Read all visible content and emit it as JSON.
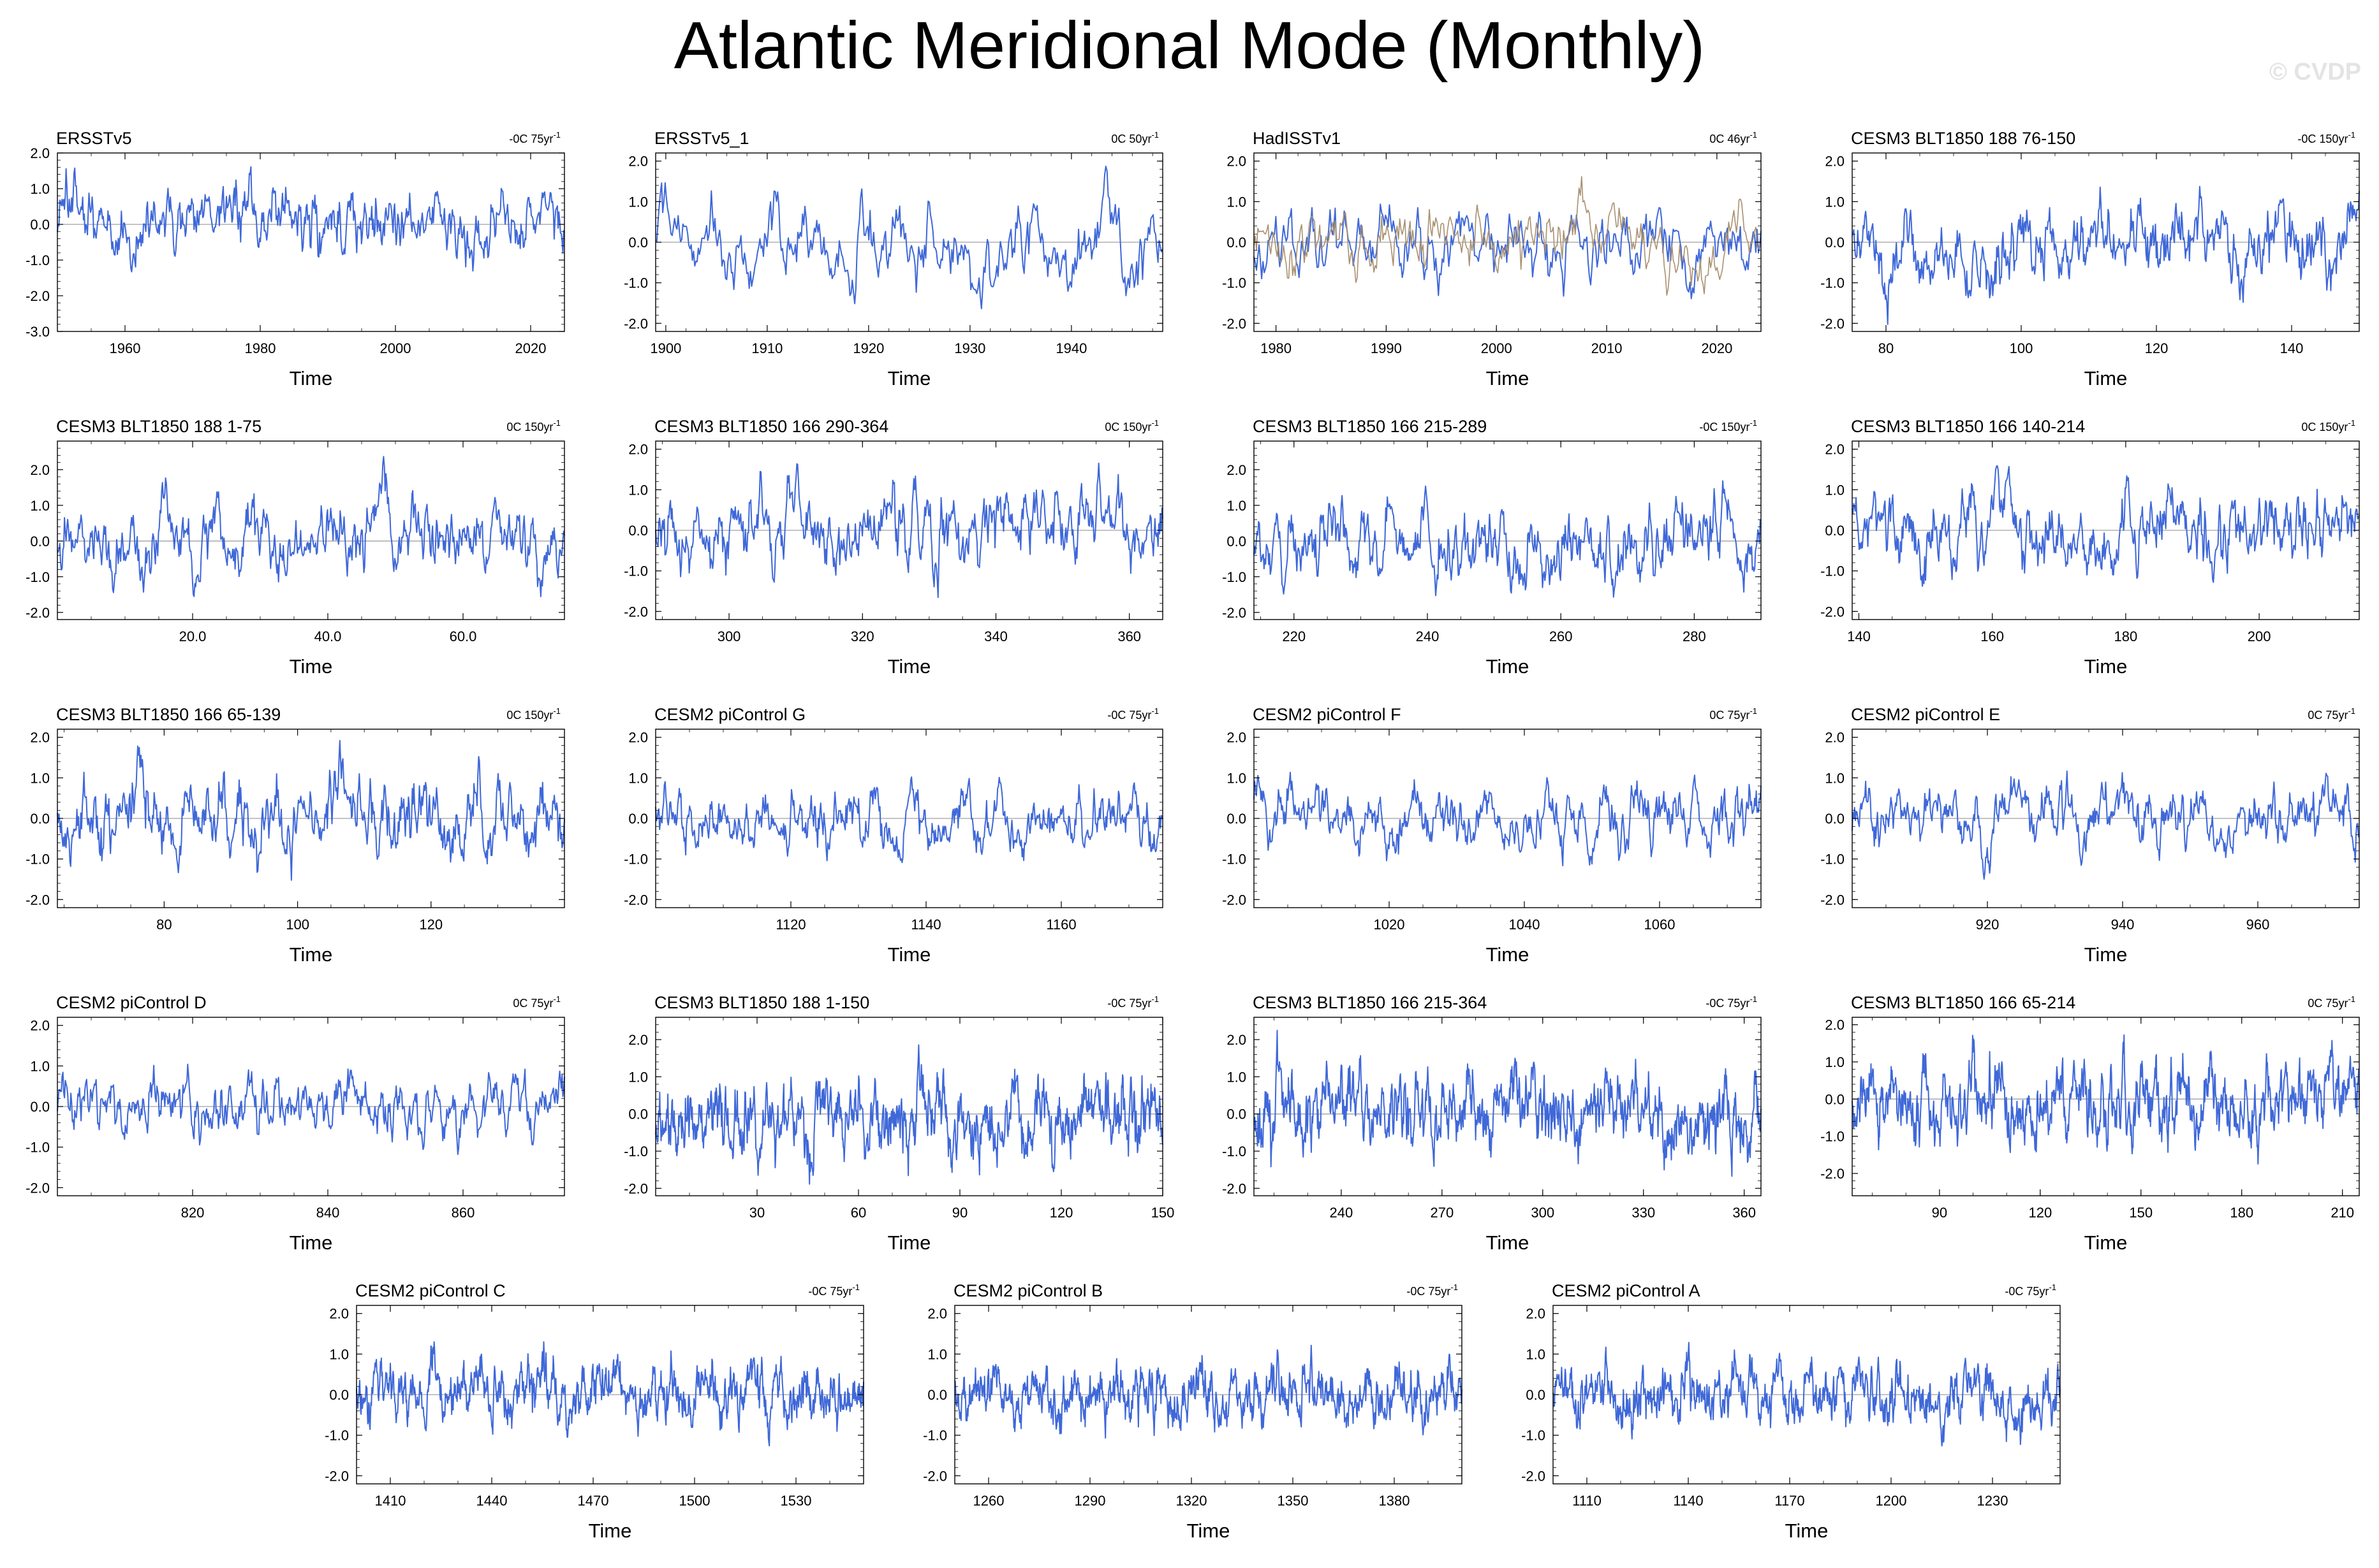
{
  "title": "Atlantic Meridional Mode (Monthly)",
  "watermark": "© CVDP",
  "colors": {
    "series": "#3f68d8",
    "secondary": "#a89070",
    "zero": "#a0a0a0",
    "axis": "#000000"
  },
  "chart_data": [
    {
      "type": "line",
      "title": "ERSSTv5",
      "trend": "-0C 75yr",
      "xlabel": "Time",
      "xlim": [
        1950,
        2025
      ],
      "ylim": [
        -3,
        2
      ],
      "yticks": [
        -3,
        -2,
        -1,
        0,
        1,
        2
      ],
      "xticks": [
        1960,
        1980,
        2000,
        2020
      ],
      "series": [
        {
          "seed": 11,
          "amp": 0.55
        }
      ]
    },
    {
      "type": "line",
      "title": "ERSSTv5_1",
      "trend": "0C 50yr",
      "xlabel": "Time",
      "xlim": [
        1899,
        1949
      ],
      "ylim": [
        -2.2,
        2.2
      ],
      "yticks": [
        -2,
        -1,
        0,
        1,
        2
      ],
      "xticks": [
        1900,
        1910,
        1920,
        1930,
        1940
      ],
      "series": [
        {
          "seed": 12,
          "amp": 0.55
        }
      ]
    },
    {
      "type": "line",
      "title": "HadISSTv1",
      "trend": "0C 46yr",
      "xlabel": "Time",
      "xlim": [
        1978,
        2024
      ],
      "ylim": [
        -2.2,
        2.2
      ],
      "yticks": [
        -2,
        -1,
        0,
        1,
        2
      ],
      "xticks": [
        1980,
        1990,
        2000,
        2010,
        2020
      ],
      "series": [
        {
          "seed": 13,
          "amp": 0.55
        },
        {
          "seed": 14,
          "amp": 0.45,
          "secondary": true
        }
      ]
    },
    {
      "type": "line",
      "title": "CESM3 BLT1850 188 76-150",
      "trend": "-0C 150yr",
      "xlabel": "Time",
      "xlim": [
        75,
        150
      ],
      "ylim": [
        -2.2,
        2.2
      ],
      "yticks": [
        -2,
        -1,
        0,
        1,
        2
      ],
      "xticks": [
        80,
        100,
        120,
        140
      ],
      "series": [
        {
          "seed": 15,
          "amp": 0.55
        }
      ]
    },
    {
      "type": "line",
      "title": "CESM3 BLT1850 188 1-75",
      "trend": "0C 150yr",
      "xlabel": "Time",
      "xlim": [
        0,
        75
      ],
      "ylim": [
        -2.2,
        2.8
      ],
      "yticks": [
        -2,
        -1,
        0,
        1,
        2
      ],
      "xticks": [
        20,
        40,
        60
      ],
      "xtickLabels": [
        "20.0",
        "40.0",
        "60.0"
      ],
      "series": [
        {
          "seed": 16,
          "amp": 0.55
        }
      ]
    },
    {
      "type": "line",
      "title": "CESM3 BLT1850 166 290-364",
      "trend": "0C 150yr",
      "xlabel": "Time",
      "xlim": [
        289,
        365
      ],
      "ylim": [
        -2.2,
        2.2
      ],
      "yticks": [
        -2,
        -1,
        0,
        1,
        2
      ],
      "xticks": [
        300,
        320,
        340,
        360
      ],
      "series": [
        {
          "seed": 17,
          "amp": 0.55
        }
      ]
    },
    {
      "type": "line",
      "title": "CESM3 BLT1850 166 215-289",
      "trend": "-0C 150yr",
      "xlabel": "Time",
      "xlim": [
        214,
        290
      ],
      "ylim": [
        -2.2,
        2.8
      ],
      "yticks": [
        -2,
        -1,
        0,
        1,
        2
      ],
      "xticks": [
        220,
        240,
        260,
        280
      ],
      "series": [
        {
          "seed": 18,
          "amp": 0.55
        }
      ]
    },
    {
      "type": "line",
      "title": "CESM3 BLT1850 166 140-214",
      "trend": "0C 150yr",
      "xlabel": "Time",
      "xlim": [
        139,
        215
      ],
      "ylim": [
        -2.2,
        2.2
      ],
      "yticks": [
        -2,
        -1,
        0,
        1,
        2
      ],
      "xticks": [
        140,
        160,
        180,
        200
      ],
      "series": [
        {
          "seed": 19,
          "amp": 0.55
        }
      ]
    },
    {
      "type": "line",
      "title": "CESM3 BLT1850 166 65-139",
      "trend": "0C 150yr",
      "xlabel": "Time",
      "xlim": [
        64,
        140
      ],
      "ylim": [
        -2.2,
        2.2
      ],
      "yticks": [
        -2,
        -1,
        0,
        1,
        2
      ],
      "xticks": [
        80,
        100,
        120
      ],
      "series": [
        {
          "seed": 20,
          "amp": 0.55
        }
      ]
    },
    {
      "type": "line",
      "title": "CESM2 piControl G",
      "trend": "-0C 75yr",
      "xlabel": "Time",
      "xlim": [
        1100,
        1175
      ],
      "ylim": [
        -2.2,
        2.2
      ],
      "yticks": [
        -2,
        -1,
        0,
        1,
        2
      ],
      "xticks": [
        1120,
        1140,
        1160
      ],
      "series": [
        {
          "seed": 21,
          "amp": 0.4
        }
      ]
    },
    {
      "type": "line",
      "title": "CESM2 piControl F",
      "trend": "0C 75yr",
      "xlabel": "Time",
      "xlim": [
        1000,
        1075
      ],
      "ylim": [
        -2.2,
        2.2
      ],
      "yticks": [
        -2,
        -1,
        0,
        1,
        2
      ],
      "xticks": [
        1020,
        1040,
        1060
      ],
      "series": [
        {
          "seed": 22,
          "amp": 0.4
        }
      ]
    },
    {
      "type": "line",
      "title": "CESM2 piControl E",
      "trend": "0C 75yr",
      "xlabel": "Time",
      "xlim": [
        900,
        975
      ],
      "ylim": [
        -2.2,
        2.2
      ],
      "yticks": [
        -2,
        -1,
        0,
        1,
        2
      ],
      "xticks": [
        920,
        940,
        960
      ],
      "series": [
        {
          "seed": 23,
          "amp": 0.4
        }
      ]
    },
    {
      "type": "line",
      "title": "CESM2 piControl D",
      "trend": "0C 75yr",
      "xlabel": "Time",
      "xlim": [
        800,
        875
      ],
      "ylim": [
        -2.2,
        2.2
      ],
      "yticks": [
        -2,
        -1,
        0,
        1,
        2
      ],
      "xticks": [
        820,
        840,
        860
      ],
      "series": [
        {
          "seed": 24,
          "amp": 0.4
        }
      ]
    },
    {
      "type": "line",
      "title": "CESM3 BLT1850 188 1-150",
      "trend": "-0C 75yr",
      "xlabel": "Time",
      "xlim": [
        0,
        150
      ],
      "ylim": [
        -2.2,
        2.6
      ],
      "yticks": [
        -2,
        -1,
        0,
        1,
        2
      ],
      "xticks": [
        30,
        60,
        90,
        120,
        150
      ],
      "series": [
        {
          "seed": 25,
          "amp": 0.55
        }
      ]
    },
    {
      "type": "line",
      "title": "CESM3 BLT1850 166 215-364",
      "trend": "-0C 75yr",
      "xlabel": "Time",
      "xlim": [
        214,
        365
      ],
      "ylim": [
        -2.2,
        2.6
      ],
      "yticks": [
        -2,
        -1,
        0,
        1,
        2
      ],
      "xticks": [
        240,
        270,
        300,
        330,
        360
      ],
      "series": [
        {
          "seed": 26,
          "amp": 0.55
        }
      ]
    },
    {
      "type": "line",
      "title": "CESM3 BLT1850 166 65-214",
      "trend": "0C 75yr",
      "xlabel": "Time",
      "xlim": [
        64,
        215
      ],
      "ylim": [
        -2.6,
        2.2
      ],
      "yticks": [
        -2,
        -1,
        0,
        1,
        2
      ],
      "xticks": [
        90,
        120,
        150,
        180,
        210
      ],
      "series": [
        {
          "seed": 27,
          "amp": 0.55
        }
      ]
    },
    {
      "type": "line",
      "title": "CESM2 piControl C",
      "trend": "-0C 75yr",
      "xlabel": "Time",
      "xlim": [
        1400,
        1550
      ],
      "ylim": [
        -2.2,
        2.2
      ],
      "yticks": [
        -2,
        -1,
        0,
        1,
        2
      ],
      "xticks": [
        1410,
        1440,
        1470,
        1500,
        1530
      ],
      "series": [
        {
          "seed": 28,
          "amp": 0.4
        }
      ]
    },
    {
      "type": "line",
      "title": "CESM2 piControl B",
      "trend": "-0C 75yr",
      "xlabel": "Time",
      "xlim": [
        1250,
        1400
      ],
      "ylim": [
        -2.2,
        2.2
      ],
      "yticks": [
        -2,
        -1,
        0,
        1,
        2
      ],
      "xticks": [
        1260,
        1290,
        1320,
        1350,
        1380
      ],
      "series": [
        {
          "seed": 29,
          "amp": 0.4
        }
      ]
    },
    {
      "type": "line",
      "title": "CESM2 piControl A",
      "trend": "-0C 75yr",
      "xlabel": "Time",
      "xlim": [
        1100,
        1250
      ],
      "ylim": [
        -2.2,
        2.2
      ],
      "yticks": [
        -2,
        -1,
        0,
        1,
        2
      ],
      "xticks": [
        1110,
        1140,
        1170,
        1200,
        1230
      ],
      "series": [
        {
          "seed": 30,
          "amp": 0.4
        }
      ]
    }
  ]
}
